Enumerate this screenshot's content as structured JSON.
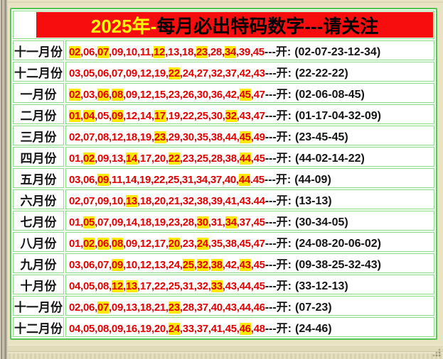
{
  "colors": {
    "page-bg": "#e9e2c3",
    "banner-bg": "#f70d0d",
    "banner-year": "#ffff00",
    "banner-title": "#000000",
    "table-border": "#56c556",
    "cell-border": "#8bdc8b",
    "cell-bg": "#ffffff",
    "table-gap": "#f7fdf3",
    "number-red": "#e10000",
    "highlight-yellow": "#ffe800",
    "text-black": "#141414"
  },
  "header": {
    "year_part": "2025年-",
    "title_part": "每月必出特码数字---请关注"
  },
  "rows": [
    {
      "label": "十一月份",
      "open": "---开:",
      "result": "(02-07-23-12-34)",
      "numbers": [
        {
          "n": "02",
          "h": 1
        },
        {
          "n": "06"
        },
        {
          "n": "07",
          "h": 1
        },
        {
          "n": "09"
        },
        {
          "n": "10"
        },
        {
          "n": "11"
        },
        {
          "n": "12",
          "h": 1
        },
        {
          "n": "13"
        },
        {
          "n": "18"
        },
        {
          "n": "23",
          "h": 1
        },
        {
          "n": "28"
        },
        {
          "n": "34",
          "h": 1
        },
        {
          "n": "39"
        },
        {
          "n": "45"
        }
      ]
    },
    {
      "label": "十二月份",
      "open": "---开:",
      "result": "(22-22-22)",
      "numbers": [
        {
          "n": "03"
        },
        {
          "n": "05"
        },
        {
          "n": "06"
        },
        {
          "n": "07"
        },
        {
          "n": "09"
        },
        {
          "n": "12"
        },
        {
          "n": "19"
        },
        {
          "n": "22",
          "h": 1
        },
        {
          "n": "24"
        },
        {
          "n": "27"
        },
        {
          "n": "32"
        },
        {
          "n": "37"
        },
        {
          "n": "42"
        },
        {
          "n": "43"
        }
      ]
    },
    {
      "label": "一月份",
      "open": "---开:",
      "result": "(02-06-08-45)",
      "numbers": [
        {
          "n": "02",
          "h": 1
        },
        {
          "n": "03"
        },
        {
          "n": "06",
          "h": 1
        },
        {
          "n": "08",
          "h": 1
        },
        {
          "n": "09"
        },
        {
          "n": "12"
        },
        {
          "n": "15"
        },
        {
          "n": "23"
        },
        {
          "n": "26"
        },
        {
          "n": "30"
        },
        {
          "n": "36"
        },
        {
          "n": "42"
        },
        {
          "n": "45",
          "h": 1
        },
        {
          "n": "47"
        }
      ]
    },
    {
      "label": "二月份",
      "open": "---开:",
      "result": "(01-17-04-32-09)",
      "numbers": [
        {
          "n": "01",
          "h": 1
        },
        {
          "n": "04",
          "h": 1
        },
        {
          "n": "05"
        },
        {
          "n": "09",
          "h": 1
        },
        {
          "n": "12"
        },
        {
          "n": "14"
        },
        {
          "n": "17",
          "h": 1
        },
        {
          "n": "19"
        },
        {
          "n": "22"
        },
        {
          "n": "25"
        },
        {
          "n": "30"
        },
        {
          "n": "32",
          "h": 1
        },
        {
          "n": "43"
        },
        {
          "n": "47"
        }
      ]
    },
    {
      "label": "三月份",
      "open": "---开:",
      "result": "(23-45-45)",
      "numbers": [
        {
          "n": "02"
        },
        {
          "n": "07"
        },
        {
          "n": "08"
        },
        {
          "n": "12"
        },
        {
          "n": "18"
        },
        {
          "n": "19"
        },
        {
          "n": "23",
          "h": 1
        },
        {
          "n": "29"
        },
        {
          "n": "30"
        },
        {
          "n": "35"
        },
        {
          "n": "38"
        },
        {
          "n": "44"
        },
        {
          "n": "45",
          "h": 1
        },
        {
          "n": "49"
        }
      ]
    },
    {
      "label": "四月份",
      "open": "---开:",
      "result": "(44-02-14-22)",
      "numbers": [
        {
          "n": "01"
        },
        {
          "n": "02",
          "h": 1
        },
        {
          "n": "09"
        },
        {
          "n": "13"
        },
        {
          "n": "14",
          "h": 1
        },
        {
          "n": "17"
        },
        {
          "n": "20"
        },
        {
          "n": "22",
          "h": 1
        },
        {
          "n": "23"
        },
        {
          "n": "25"
        },
        {
          "n": "28"
        },
        {
          "n": "38"
        },
        {
          "n": "44",
          "h": 1
        },
        {
          "n": "45"
        }
      ]
    },
    {
      "label": "五月份",
      "open": "---开:",
      "result": "(44-09)",
      "numbers": [
        {
          "n": "03"
        },
        {
          "n": "06"
        },
        {
          "n": "09",
          "h": 1
        },
        {
          "n": "11"
        },
        {
          "n": "14"
        },
        {
          "n": "19"
        },
        {
          "n": "22"
        },
        {
          "n": "25"
        },
        {
          "n": "31"
        },
        {
          "n": "34"
        },
        {
          "n": "37"
        },
        {
          "n": "40"
        },
        {
          "n": "44",
          "h": 1,
          "s": "."
        },
        {
          "n": "45"
        }
      ]
    },
    {
      "label": "六月份",
      "open": "---开:",
      "result": "(13-13)",
      "numbers": [
        {
          "n": "02"
        },
        {
          "n": "07"
        },
        {
          "n": "09"
        },
        {
          "n": "10"
        },
        {
          "n": "13",
          "h": 1
        },
        {
          "n": "18"
        },
        {
          "n": "20"
        },
        {
          "n": "21"
        },
        {
          "n": "32"
        },
        {
          "n": "38"
        },
        {
          "n": "39"
        },
        {
          "n": "41"
        },
        {
          "n": "43",
          "s": "."
        },
        {
          "n": "44"
        }
      ]
    },
    {
      "label": "七月份",
      "open": "---开:",
      "result": "(30-34-05)",
      "numbers": [
        {
          "n": "01"
        },
        {
          "n": "05",
          "h": 1
        },
        {
          "n": "07"
        },
        {
          "n": "09"
        },
        {
          "n": "14"
        },
        {
          "n": "18"
        },
        {
          "n": "19"
        },
        {
          "n": "23"
        },
        {
          "n": "28"
        },
        {
          "n": "30",
          "h": 1
        },
        {
          "n": "31"
        },
        {
          "n": "34",
          "h": 1
        },
        {
          "n": "37"
        },
        {
          "n": "45"
        }
      ]
    },
    {
      "label": "八月份",
      "open": "---开:",
      "result": "(24-08-20-06-02)",
      "numbers": [
        {
          "n": "01"
        },
        {
          "n": "02",
          "h": 1
        },
        {
          "n": "06",
          "h": 1
        },
        {
          "n": "08",
          "h": 1
        },
        {
          "n": "09"
        },
        {
          "n": "12"
        },
        {
          "n": "17"
        },
        {
          "n": "20",
          "h": 1
        },
        {
          "n": "23"
        },
        {
          "n": "24",
          "h": 1
        },
        {
          "n": "35"
        },
        {
          "n": "38"
        },
        {
          "n": "45"
        },
        {
          "n": "47"
        }
      ]
    },
    {
      "label": "九月份",
      "open": "---开:",
      "result": "(09-38-25-32-43)",
      "numbers": [
        {
          "n": "03"
        },
        {
          "n": "06"
        },
        {
          "n": "07"
        },
        {
          "n": "09",
          "h": 1
        },
        {
          "n": "10"
        },
        {
          "n": "12"
        },
        {
          "n": "13"
        },
        {
          "n": "24"
        },
        {
          "n": "25",
          "h": 1
        },
        {
          "n": "32",
          "h": 1
        },
        {
          "n": "38",
          "h": 1
        },
        {
          "n": "42"
        },
        {
          "n": "43",
          "h": 1
        },
        {
          "n": "45"
        }
      ]
    },
    {
      "label": "十月份",
      "open": "---开:",
      "result": "(33-12-13)",
      "numbers": [
        {
          "n": "04"
        },
        {
          "n": "05"
        },
        {
          "n": "08"
        },
        {
          "n": "12",
          "h": 1
        },
        {
          "n": "13",
          "h": 1
        },
        {
          "n": "17"
        },
        {
          "n": "22"
        },
        {
          "n": "25"
        },
        {
          "n": "31"
        },
        {
          "n": "32"
        },
        {
          "n": "33",
          "h": 1
        },
        {
          "n": "43"
        },
        {
          "n": "44"
        },
        {
          "n": "45"
        }
      ]
    },
    {
      "label": "十一月份",
      "open": "---开:",
      "result": "(07-23)",
      "numbers": [
        {
          "n": "02"
        },
        {
          "n": "06"
        },
        {
          "n": "07",
          "h": 1
        },
        {
          "n": "09"
        },
        {
          "n": "13"
        },
        {
          "n": "18"
        },
        {
          "n": "21"
        },
        {
          "n": "23",
          "h": 1
        },
        {
          "n": "28"
        },
        {
          "n": "37"
        },
        {
          "n": "40"
        },
        {
          "n": "43"
        },
        {
          "n": "44"
        },
        {
          "n": "46"
        }
      ]
    },
    {
      "label": "十二月份",
      "open": "---开:",
      "result": "(24-46)",
      "numbers": [
        {
          "n": "04"
        },
        {
          "n": "05"
        },
        {
          "n": "08"
        },
        {
          "n": "09"
        },
        {
          "n": "16"
        },
        {
          "n": "19"
        },
        {
          "n": "20"
        },
        {
          "n": "24",
          "h": 1
        },
        {
          "n": "33"
        },
        {
          "n": "37"
        },
        {
          "n": "41"
        },
        {
          "n": "45"
        },
        {
          "n": "46",
          "h": 1
        },
        {
          "n": "48"
        }
      ]
    }
  ]
}
